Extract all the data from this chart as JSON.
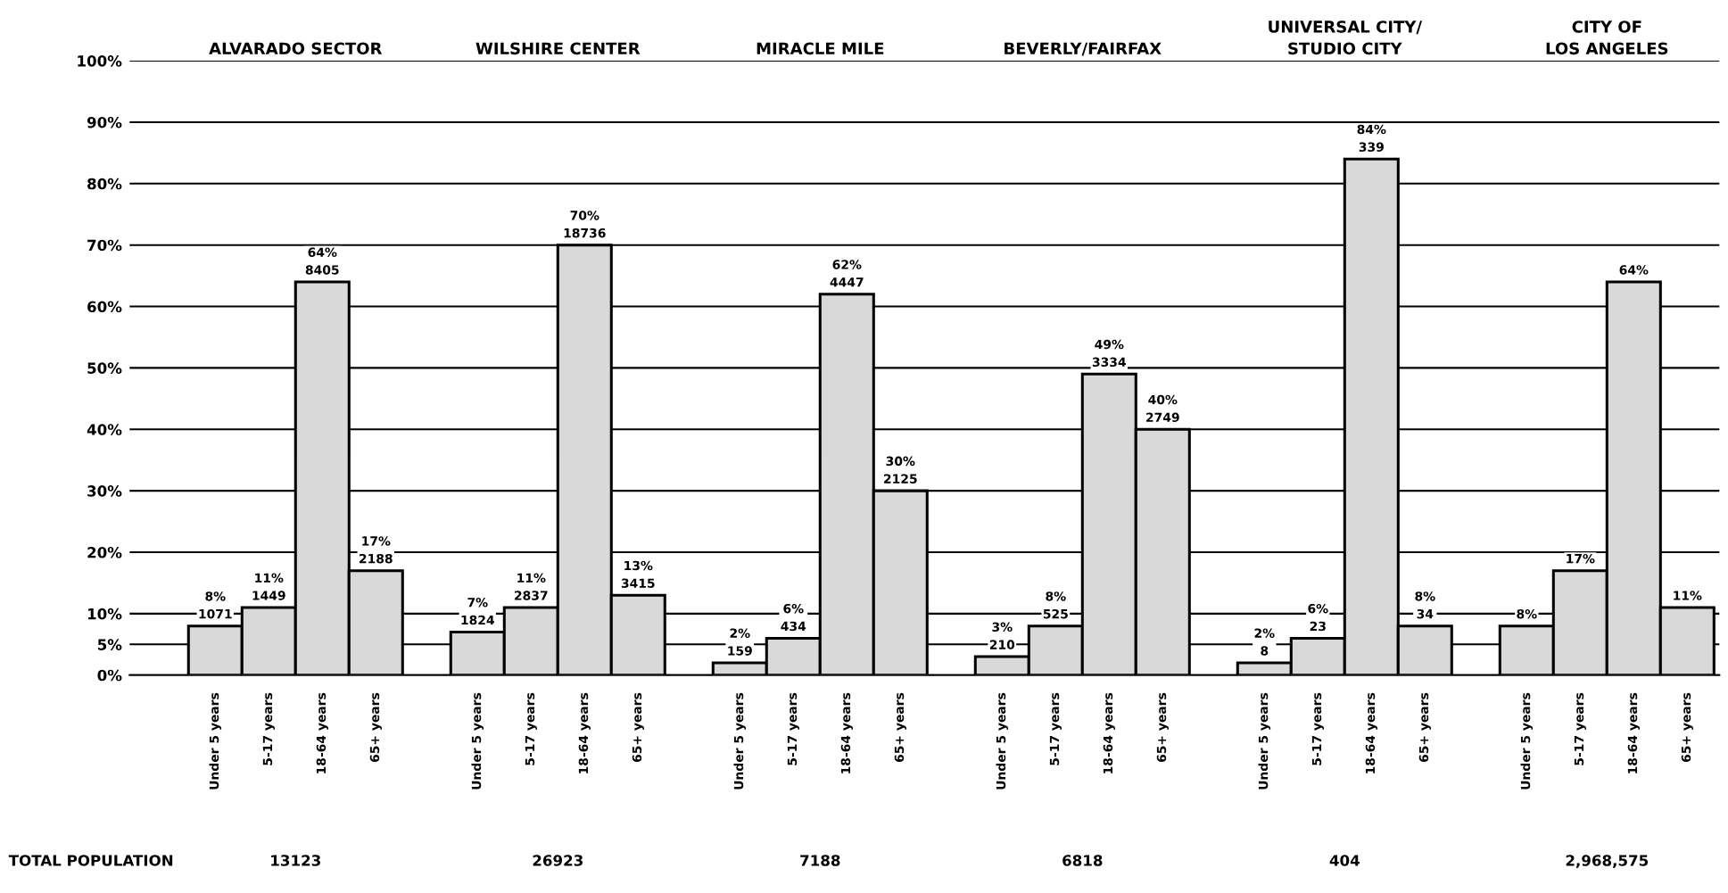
{
  "chart_data": {
    "type": "bar",
    "categories": [
      "Under 5 years",
      "5-17 years",
      "18-64 years",
      "65+ years",
      "Under 5 years",
      "5-17 years",
      "18-64 years",
      "65+ years",
      "Under 5 years",
      "5-17 years",
      "18-64 years",
      "65+ years",
      "Under 5 years",
      "5-17 years",
      "18-64 years",
      "65+ years",
      "Under 5 years",
      "5-17 years",
      "18-64 years",
      "65+ years",
      "Under 5 years",
      "5-17 years",
      "18-64 years",
      "65+ years"
    ],
    "values": [
      8,
      11,
      64,
      17,
      7,
      11,
      70,
      13,
      2,
      6,
      62,
      30,
      3,
      8,
      49,
      40,
      2,
      6,
      84,
      8,
      8,
      17,
      64,
      11
    ],
    "value_labels": [
      "8%\n1071",
      "11%\n1449",
      "64%\n8405",
      "17%\n2188",
      "7%\n1824",
      "11%\n2837",
      "70%\n18736",
      "13%\n3415",
      "2%\n159",
      "6%\n434",
      "62%\n4447",
      "30%\n2125",
      "3%\n210",
      "8%\n525",
      "49%\n3334",
      "40%\n2749",
      "2%\n8",
      "6%\n23",
      "84%\n339",
      "8%\n34",
      "8%",
      "17%",
      "64%",
      "11%"
    ],
    "color": "#d9d9d9",
    "ylim": [
      0,
      100
    ],
    "yticks": [
      {
        "value": 0,
        "label": "0%"
      },
      {
        "value": 5,
        "label": "5%"
      },
      {
        "value": 10,
        "label": "10%"
      },
      {
        "value": 20,
        "label": "20%"
      },
      {
        "value": 30,
        "label": "30%"
      },
      {
        "value": 40,
        "label": "40%"
      },
      {
        "value": 50,
        "label": "50%"
      },
      {
        "value": 60,
        "label": "60%"
      },
      {
        "value": 70,
        "label": "70%"
      },
      {
        "value": 80,
        "label": "80%"
      },
      {
        "value": 90,
        "label": "90%"
      },
      {
        "value": 100,
        "label": "100%"
      }
    ],
    "grid": "y",
    "annotations": [
      "ALVARADO SECTOR",
      "WILSHIRE CENTER",
      "MIRACLE MILE",
      "BEVERLY/FAIRFAX",
      "UNIVERSAL CITY/\nSTUDIO CITY",
      "CITY OF\nLOS ANGELES",
      "TOTAL POPULATION",
      "13123",
      "26923",
      "7188",
      "6818",
      "404",
      "2,968,575"
    ]
  }
}
